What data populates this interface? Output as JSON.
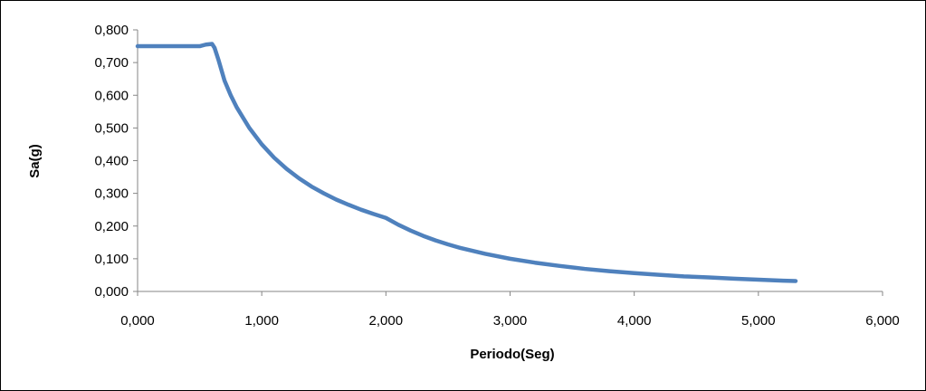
{
  "chart_data": {
    "type": "line",
    "title": "",
    "xlabel": "Periodo(Seg)",
    "ylabel": "Sa(g)",
    "xlim": [
      0,
      6
    ],
    "ylim": [
      0,
      0.8
    ],
    "x_ticks": [
      0,
      1,
      2,
      3,
      4,
      5,
      6
    ],
    "y_ticks": [
      0,
      0.1,
      0.2,
      0.3,
      0.4,
      0.5,
      0.6,
      0.7,
      0.8
    ],
    "x_tick_labels": [
      "0,000",
      "1,000",
      "2,000",
      "3,000",
      "4,000",
      "5,000",
      "6,000"
    ],
    "y_tick_labels": [
      "0,000",
      "0,100",
      "0,200",
      "0,300",
      "0,400",
      "0,500",
      "0,600",
      "0,700",
      "0,800"
    ],
    "grid": false,
    "legend": "none",
    "series": [
      {
        "color": "#4f81bd",
        "x": [
          0.0,
          0.1,
          0.2,
          0.3,
          0.4,
          0.5,
          0.55,
          0.6,
          0.62,
          0.65,
          0.7,
          0.75,
          0.8,
          0.9,
          1.0,
          1.1,
          1.2,
          1.3,
          1.4,
          1.5,
          1.6,
          1.7,
          1.8,
          1.9,
          2.0,
          2.1,
          2.2,
          2.3,
          2.4,
          2.5,
          2.6,
          2.8,
          3.0,
          3.2,
          3.4,
          3.6,
          3.8,
          4.0,
          4.2,
          4.4,
          4.6,
          4.8,
          5.0,
          5.2,
          5.3
        ],
        "y": [
          0.75,
          0.75,
          0.75,
          0.75,
          0.75,
          0.75,
          0.755,
          0.757,
          0.745,
          0.71,
          0.645,
          0.6,
          0.562,
          0.5,
          0.45,
          0.409,
          0.375,
          0.346,
          0.321,
          0.3,
          0.281,
          0.265,
          0.25,
          0.237,
          0.225,
          0.204,
          0.186,
          0.17,
          0.156,
          0.144,
          0.133,
          0.115,
          0.1,
          0.088,
          0.078,
          0.069,
          0.062,
          0.056,
          0.051,
          0.046,
          0.043,
          0.039,
          0.036,
          0.033,
          0.032
        ]
      }
    ]
  }
}
